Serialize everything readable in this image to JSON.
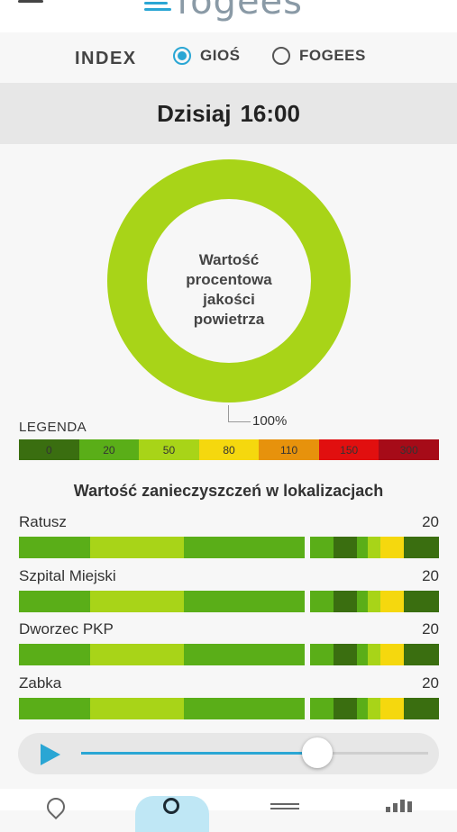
{
  "header": {
    "logo_text": "fogees",
    "menu_icon": "hamburger-menu-icon"
  },
  "index_selector": {
    "label": "INDEX",
    "options": [
      {
        "label": "GIOŚ",
        "selected": true
      },
      {
        "label": "FOGEES",
        "selected": false
      }
    ]
  },
  "date": {
    "day": "Dzisiaj",
    "time": "16:00"
  },
  "gauge": {
    "center_text": [
      "Wartość",
      "procentowa",
      "jakości",
      "powietrza"
    ],
    "percent_label": "100%",
    "percent_value": 100,
    "color": "#a8d418"
  },
  "legend": {
    "title": "LEGENDA",
    "segments": [
      {
        "label": "0",
        "color": "#3a6e10"
      },
      {
        "label": "20",
        "color": "#5aae18"
      },
      {
        "label": "50",
        "color": "#a8d418"
      },
      {
        "label": "80",
        "color": "#f5d80e"
      },
      {
        "label": "110",
        "color": "#e7920c"
      },
      {
        "label": "150",
        "color": "#e10f0f"
      },
      {
        "label": "300",
        "color": "#a60b18"
      }
    ]
  },
  "pollution": {
    "title": "Wartość zanieczyszczeń w lokalizacjach",
    "locations": [
      {
        "name": "Ratusz",
        "value": "20"
      },
      {
        "name": "Szpital Miejski",
        "value": "20"
      },
      {
        "name": "Dworzec PKP",
        "value": "20"
      },
      {
        "name": "Zabka",
        "value": "20"
      }
    ],
    "left_bar_colors": [
      "#5aae18",
      "#5aae18",
      "#a8d418",
      "#a8d418",
      "#5aae18",
      "#5aae18",
      "#5aae18"
    ],
    "right_bar_colors": [
      "#5aae18",
      "#3a6e10",
      "#5aae18",
      "#a8d418",
      "#f5d80e",
      "#3a6e10",
      "#3a6e10"
    ]
  },
  "player": {
    "play_icon": "play-icon",
    "progress": 0.68
  },
  "bottom_nav": {
    "items": [
      "map-pin-icon",
      "gauge-icon",
      "list-icon",
      "bar-chart-icon"
    ]
  }
}
